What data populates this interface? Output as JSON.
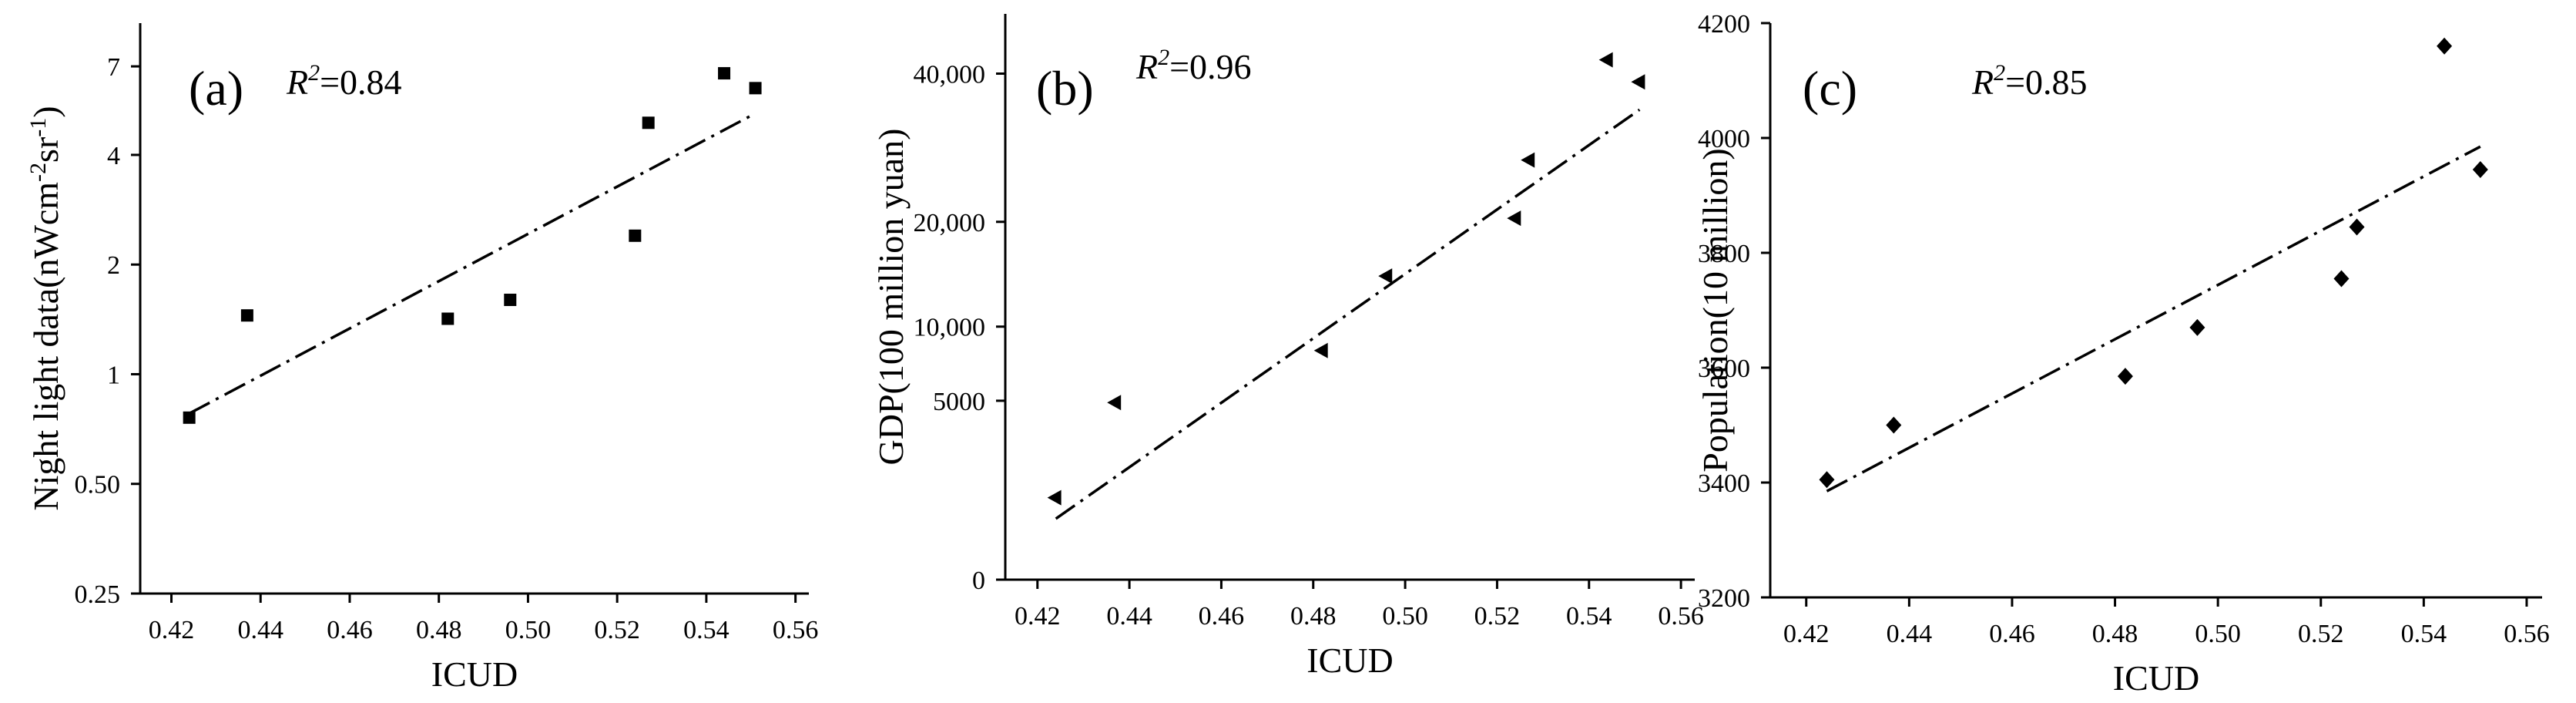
{
  "chart_data": [
    {
      "type": "scatter",
      "panel": "(a)",
      "r2_label": "R",
      "r2_value": "=0.84",
      "xlabel": "ICUD",
      "ylabel": "Night light data(nWcm",
      "ylabel_sup1": "-2",
      "ylabel_mid": "sr",
      "ylabel_sup2": "-1",
      "ylabel_end": ")",
      "y_scale": "log2",
      "xlim": [
        0.413,
        0.563
      ],
      "ylim": [
        0.25,
        9.2
      ],
      "xticks": [
        "0.42",
        "0.44",
        "0.46",
        "0.48",
        "0.50",
        "0.52",
        "0.54",
        "0.56"
      ],
      "xtick_values": [
        0.42,
        0.44,
        0.46,
        0.48,
        0.5,
        0.52,
        0.54,
        0.56
      ],
      "yticks": [
        "0.25",
        "0.50",
        "1",
        "2",
        "4",
        "7"
      ],
      "ytick_values": [
        0.25,
        0.5,
        1,
        2,
        4,
        7
      ],
      "marker": "square",
      "points": [
        {
          "x": 0.424,
          "y": 0.76
        },
        {
          "x": 0.437,
          "y": 1.45
        },
        {
          "x": 0.482,
          "y": 1.42
        },
        {
          "x": 0.496,
          "y": 1.6
        },
        {
          "x": 0.524,
          "y": 2.4
        },
        {
          "x": 0.527,
          "y": 4.9
        },
        {
          "x": 0.544,
          "y": 6.7
        },
        {
          "x": 0.551,
          "y": 6.1
        }
      ],
      "fit": {
        "x": [
          0.424,
          0.551
        ],
        "y": [
          0.78,
          5.2
        ]
      }
    },
    {
      "type": "scatter",
      "panel": "(b)",
      "r2_label": "R",
      "r2_value": "=0.96",
      "xlabel": "ICUD",
      "ylabel": "GDP(100 million yuan)",
      "y_scale": "sqrt",
      "xlim": [
        0.413,
        0.563
      ],
      "ylim": [
        0,
        50000
      ],
      "xticks": [
        "0.42",
        "0.44",
        "0.46",
        "0.48",
        "0.50",
        "0.52",
        "0.54",
        "0.56"
      ],
      "xtick_values": [
        0.42,
        0.44,
        0.46,
        0.48,
        0.5,
        0.52,
        0.54,
        0.56
      ],
      "yticks": [
        "0",
        "5000",
        "10,000",
        "20,000",
        "40,000"
      ],
      "ytick_values": [
        0,
        5000,
        10000,
        20000,
        40000
      ],
      "marker": "triangle-left",
      "points": [
        {
          "x": 0.424,
          "y": 1050
        },
        {
          "x": 0.437,
          "y": 4900
        },
        {
          "x": 0.482,
          "y": 8200
        },
        {
          "x": 0.496,
          "y": 14400
        },
        {
          "x": 0.524,
          "y": 20400
        },
        {
          "x": 0.527,
          "y": 27500
        },
        {
          "x": 0.544,
          "y": 42200
        },
        {
          "x": 0.551,
          "y": 38700
        }
      ],
      "fit": {
        "x": [
          0.424,
          0.551
        ],
        "y": [
          580,
          34500
        ]
      }
    },
    {
      "type": "scatter",
      "panel": "(c)",
      "r2_label": "R",
      "r2_value": "=0.85",
      "xlabel": "ICUD",
      "ylabel": "Population(10 million)",
      "y_scale": "linear",
      "xlim": [
        0.413,
        0.563
      ],
      "ylim": [
        3200,
        4200
      ],
      "xticks": [
        "0.42",
        "0.44",
        "0.46",
        "0.48",
        "0.50",
        "0.52",
        "0.54",
        "0.56"
      ],
      "xtick_values": [
        0.42,
        0.44,
        0.46,
        0.48,
        0.5,
        0.52,
        0.54,
        0.56
      ],
      "yticks": [
        "3200",
        "3400",
        "3600",
        "3800",
        "4000",
        "4200"
      ],
      "ytick_values": [
        3200,
        3400,
        3600,
        3800,
        4000,
        4200
      ],
      "marker": "diamond",
      "points": [
        {
          "x": 0.424,
          "y": 3405
        },
        {
          "x": 0.437,
          "y": 3500
        },
        {
          "x": 0.482,
          "y": 3585
        },
        {
          "x": 0.496,
          "y": 3670
        },
        {
          "x": 0.524,
          "y": 3755
        },
        {
          "x": 0.527,
          "y": 3845
        },
        {
          "x": 0.544,
          "y": 4160
        },
        {
          "x": 0.551,
          "y": 3945
        }
      ],
      "fit": {
        "x": [
          0.424,
          0.551
        ],
        "y": [
          3385,
          3985
        ]
      }
    }
  ]
}
